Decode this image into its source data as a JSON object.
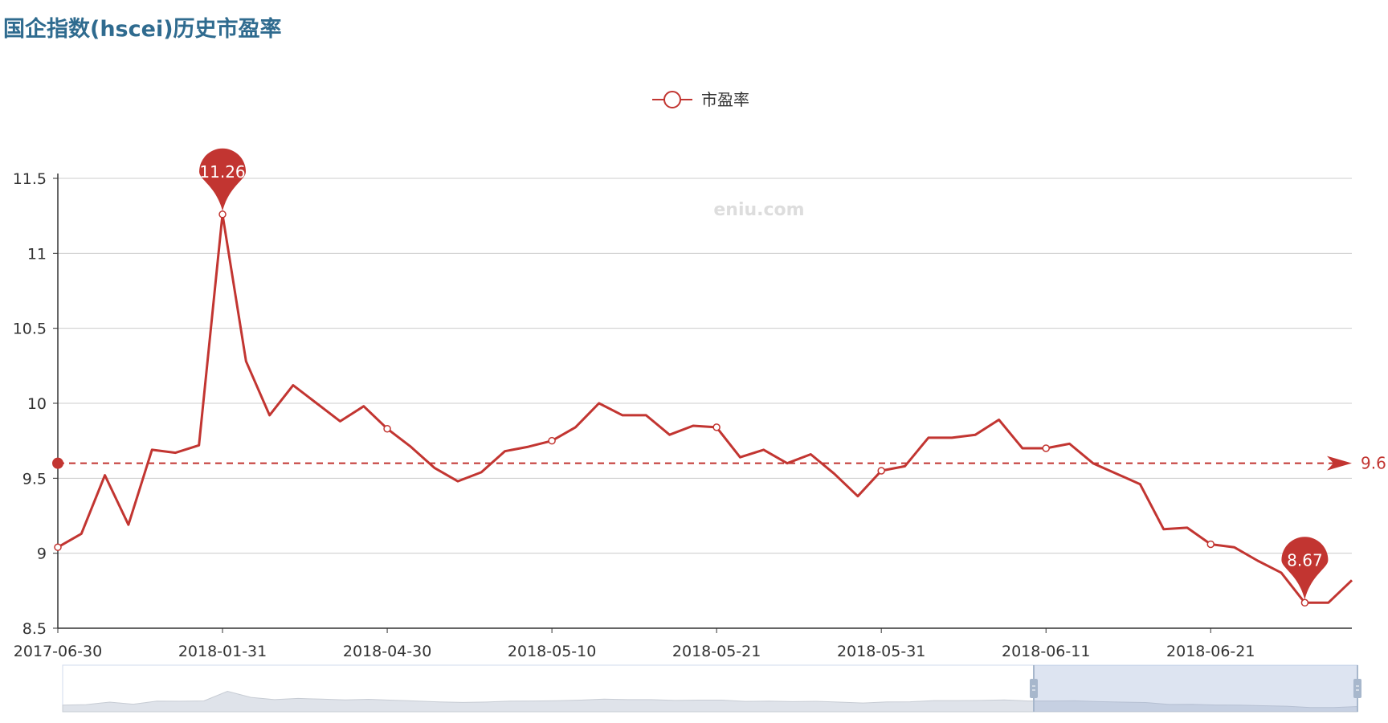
{
  "title": "国企指数(hscei)历史市盈率",
  "watermark": "eniu.com",
  "colors": {
    "series": "#c23531",
    "title": "#2f6b8f"
  },
  "chart_data": {
    "type": "line",
    "title": "国企指数(hscei)历史市盈率",
    "legend": {
      "position": "top-center",
      "entries": [
        "市盈率"
      ]
    },
    "grid": true,
    "xlabel": "",
    "ylabel": "",
    "ylim": [
      8.5,
      11.5
    ],
    "y_ticks": [
      "8.5",
      "9",
      "9.5",
      "10",
      "10.5",
      "11",
      "11.5"
    ],
    "x_tick_labels": [
      {
        "index": 0,
        "label": "2017-06-30"
      },
      {
        "index": 7,
        "label": "2018-01-31"
      },
      {
        "index": 14,
        "label": "2018-04-30"
      },
      {
        "index": 21,
        "label": "2018-05-10"
      },
      {
        "index": 28,
        "label": "2018-05-21"
      },
      {
        "index": 35,
        "label": "2018-05-31"
      },
      {
        "index": 42,
        "label": "2018-06-11"
      },
      {
        "index": 49,
        "label": "2018-06-21"
      }
    ],
    "series": [
      {
        "name": "市盈率",
        "values": [
          9.04,
          9.13,
          9.52,
          9.19,
          9.69,
          9.67,
          9.72,
          11.26,
          10.28,
          9.92,
          10.12,
          10.0,
          9.88,
          9.98,
          9.83,
          9.71,
          9.57,
          9.48,
          9.54,
          9.68,
          9.71,
          9.75,
          9.84,
          10.0,
          9.92,
          9.92,
          9.79,
          9.85,
          9.84,
          9.64,
          9.69,
          9.6,
          9.66,
          9.53,
          9.38,
          9.55,
          9.58,
          9.77,
          9.77,
          9.79,
          9.89,
          9.7,
          9.7,
          9.73,
          9.6,
          9.53,
          9.46,
          9.16,
          9.17,
          9.06,
          9.04,
          8.95,
          8.87,
          8.67,
          8.67,
          8.82
        ]
      }
    ],
    "mark_points": [
      {
        "type": "max",
        "index": 7,
        "label": "11.26"
      },
      {
        "type": "min",
        "index": 53,
        "label": "8.67"
      }
    ],
    "mark_line": {
      "type": "average",
      "value": 9.6,
      "label": "9.6"
    },
    "data_zoom": {
      "start_fraction": 0.75,
      "end_fraction": 1.0
    }
  }
}
